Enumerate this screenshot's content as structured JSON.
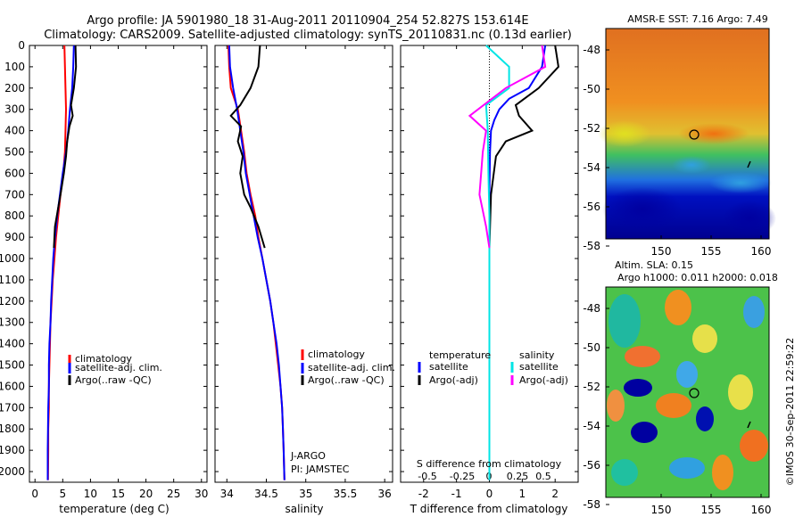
{
  "header": {
    "line1": "Argo profile: JA 5901980_18 31-Aug-2011 20110904_254 52.827S 153.614E",
    "line2": "Climatology: CARS2009. Satellite-adjusted climatology: synTS_20110831.nc (0.13d earlier)"
  },
  "colors": {
    "climatology": "#ff0000",
    "satellite": "#0000ff",
    "argo": "#000000",
    "salinity_sat": "#00e5e5",
    "salinity_argo": "#ff00ff"
  },
  "chart_data": [
    {
      "type": "line",
      "panel": "temperature",
      "xlabel": "temperature (deg C)",
      "xlim": [
        -1,
        31
      ],
      "xticks": [
        "0",
        "5",
        "10",
        "15",
        "20",
        "25",
        "30"
      ],
      "ylim": [
        0,
        2050
      ],
      "yticks": [
        "0",
        "100",
        "200",
        "300",
        "400",
        "500",
        "600",
        "700",
        "800",
        "900",
        "1000",
        "1100",
        "1200",
        "1300",
        "1400",
        "1500",
        "1600",
        "1700",
        "1800",
        "1900",
        "2000"
      ],
      "legend": [
        "climatology",
        "satellite-adj. clim.",
        "Argo(..raw -QC)"
      ],
      "series": [
        {
          "name": "climatology",
          "color": "#ff0000",
          "x": [
            5.3,
            5.4,
            5.5,
            5.6,
            5.5,
            5.4,
            5.1,
            4.6,
            4.2,
            3.8,
            3.5,
            3.2,
            3.0,
            2.8,
            2.7,
            2.6,
            2.5,
            2.5,
            2.4,
            2.4,
            2.35
          ],
          "y": [
            0,
            100,
            200,
            300,
            400,
            500,
            600,
            700,
            800,
            900,
            1000,
            1100,
            1200,
            1300,
            1400,
            1500,
            1600,
            1700,
            1800,
            1900,
            2040
          ]
        },
        {
          "name": "satellite-adj. clim.",
          "color": "#0000ff",
          "x": [
            7.0,
            6.9,
            6.7,
            6.3,
            6.0,
            5.6,
            5.0,
            4.5,
            4.0,
            3.6,
            3.3,
            3.1,
            2.9,
            2.8,
            2.6,
            2.5,
            2.5,
            2.4,
            2.35,
            2.3,
            2.3
          ],
          "y": [
            0,
            100,
            200,
            300,
            400,
            500,
            600,
            700,
            800,
            900,
            1000,
            1100,
            1200,
            1300,
            1400,
            1500,
            1600,
            1700,
            1800,
            1900,
            2040
          ]
        },
        {
          "name": "Argo(..raw -QC)",
          "color": "#000000",
          "x": [
            7.3,
            7.4,
            7.0,
            6.5,
            6.8,
            6.2,
            5.8,
            5.6,
            5.2,
            4.6,
            4.2,
            3.6,
            3.4
          ],
          "y": [
            0,
            100,
            200,
            280,
            330,
            380,
            450,
            520,
            600,
            700,
            760,
            850,
            950
          ]
        }
      ]
    },
    {
      "type": "line",
      "panel": "salinity",
      "xlabel": "salinity",
      "xlim": [
        33.85,
        36.1
      ],
      "xticks": [
        "34",
        "34.5",
        "35",
        "35.5",
        "36"
      ],
      "ylim": [
        0,
        2050
      ],
      "legend": [
        "climatology",
        "satellite-adj. clim.",
        "Argo(..raw -QC)"
      ],
      "annotations": [
        "J-ARGO",
        "PI: JAMSTEC"
      ],
      "series": [
        {
          "name": "climatology",
          "color": "#ff0000",
          "x": [
            34.02,
            34.03,
            34.05,
            34.14,
            34.18,
            34.22,
            34.25,
            34.3,
            34.36,
            34.4,
            34.45,
            34.5,
            34.55,
            34.59,
            34.62,
            34.65,
            34.68,
            34.7,
            34.71,
            34.72,
            34.73
          ],
          "y": [
            0,
            100,
            200,
            300,
            400,
            500,
            600,
            700,
            800,
            900,
            1000,
            1100,
            1200,
            1300,
            1400,
            1500,
            1600,
            1700,
            1800,
            1900,
            2040
          ]
        },
        {
          "name": "satellite-adj. clim.",
          "color": "#0000ff",
          "x": [
            34.03,
            34.04,
            34.08,
            34.13,
            34.17,
            34.21,
            34.24,
            34.29,
            34.34,
            34.39,
            34.45,
            34.5,
            34.55,
            34.59,
            34.63,
            34.66,
            34.68,
            34.7,
            34.71,
            34.72,
            34.73
          ],
          "y": [
            0,
            100,
            200,
            300,
            400,
            500,
            600,
            700,
            800,
            900,
            1000,
            1100,
            1200,
            1300,
            1400,
            1500,
            1600,
            1700,
            1800,
            1900,
            2040
          ]
        },
        {
          "name": "Argo(..raw -QC)",
          "color": "#000000",
          "x": [
            34.42,
            34.4,
            34.3,
            34.17,
            34.05,
            34.18,
            34.14,
            34.2,
            34.17,
            34.22,
            34.3,
            34.4,
            34.48
          ],
          "y": [
            0,
            100,
            200,
            280,
            330,
            380,
            450,
            520,
            600,
            700,
            760,
            850,
            950
          ]
        }
      ]
    },
    {
      "type": "line",
      "panel": "difference",
      "xlabel": "T difference from climatology",
      "xlabel_top": "S difference from climatology",
      "xlim": [
        -2.7,
        2.7
      ],
      "xticks": [
        "-2",
        "-1",
        "0",
        "1",
        "2"
      ],
      "xticks_top": [
        "-0.5",
        "-0.25",
        "0",
        "0.25",
        "0.5"
      ],
      "ylim": [
        0,
        2050
      ],
      "legend_temperature": {
        "title": "temperature",
        "items": [
          "satellite",
          "Argo(-adj)"
        ]
      },
      "legend_salinity": {
        "title": "salinity",
        "items": [
          "satellite",
          "Argo(-adj)"
        ]
      },
      "series": [
        {
          "name": "satellite (T)",
          "color": "#0000ff",
          "x": [
            1.7,
            1.6,
            1.2,
            0.6,
            0.3,
            0.15,
            0.05,
            0.02,
            0,
            0,
            0,
            0
          ],
          "y": [
            0,
            100,
            200,
            250,
            300,
            350,
            400,
            500,
            700,
            1000,
            1500,
            2040
          ]
        },
        {
          "name": "Argo(-adj) (T)",
          "color": "#000000",
          "x": [
            2.0,
            2.1,
            1.5,
            0.8,
            0.9,
            1.3,
            0.5,
            0.2,
            0.05,
            0
          ],
          "y": [
            0,
            100,
            200,
            280,
            330,
            400,
            450,
            520,
            700,
            950
          ]
        },
        {
          "name": "satellite (S)",
          "color": "#00e5e5",
          "x": [
            -0.1,
            0.6,
            0.6,
            -0.1,
            -0.05,
            -0.03,
            0,
            0,
            0,
            0
          ],
          "y": [
            0,
            100,
            200,
            280,
            400,
            600,
            800,
            1000,
            1500,
            2040
          ]
        },
        {
          "name": "Argo(-adj) (S)",
          "color": "#ff00ff",
          "x": [
            1.6,
            1.7,
            0.5,
            -0.6,
            -0.1,
            -0.2,
            -0.3,
            -0.1,
            0
          ],
          "y": [
            0,
            100,
            200,
            330,
            400,
            500,
            700,
            850,
            950
          ]
        }
      ]
    },
    {
      "type": "heatmap",
      "panel": "sst-map",
      "title": "AMSR-E SST: 7.16 Argo: 7.49",
      "xticks": [
        "150",
        "155",
        "160"
      ],
      "yticks": [
        "-48",
        "-50",
        "-52",
        "-54",
        "-56",
        "-58"
      ]
    },
    {
      "type": "heatmap",
      "panel": "sla-map",
      "title_line1": "Altim. SLA: 0.15",
      "title_line2": "Argo h1000: 0.011 h2000: 0.018",
      "xticks": [
        "150",
        "155",
        "160"
      ],
      "yticks": [
        "-48",
        "-50",
        "-52",
        "-54",
        "-56",
        "-58"
      ]
    }
  ],
  "footer": {
    "credit": "©IMOS 30-Sep-2011 22:59:22"
  }
}
